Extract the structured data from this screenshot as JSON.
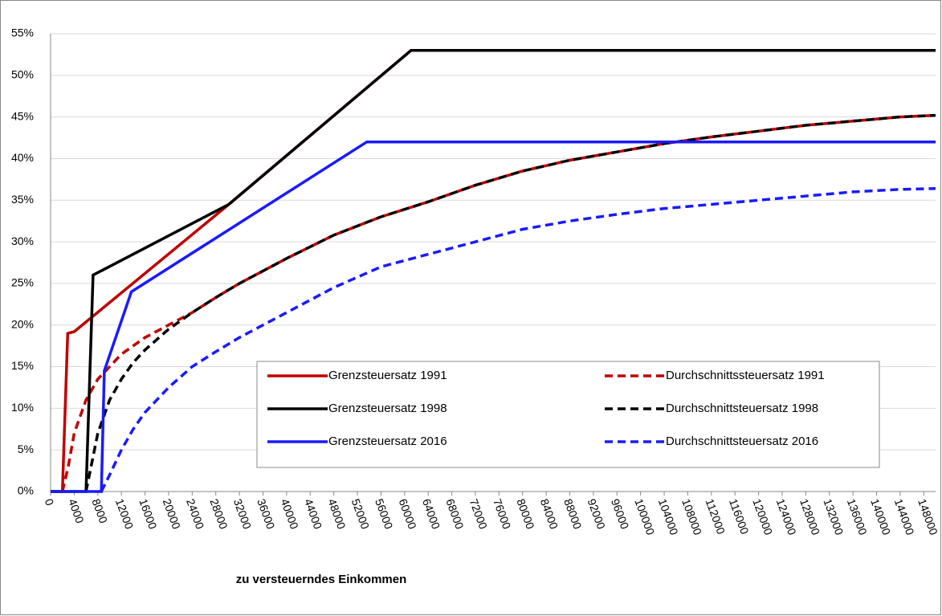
{
  "chart_data": {
    "type": "line",
    "xlabel": "zu versteuerndes Einkommen",
    "xlim": [
      0,
      150000
    ],
    "xticks": [
      0,
      4000,
      8000,
      12000,
      16000,
      20000,
      24000,
      28000,
      32000,
      36000,
      40000,
      44000,
      48000,
      52000,
      56000,
      60000,
      64000,
      68000,
      72000,
      76000,
      80000,
      84000,
      88000,
      92000,
      96000,
      100000,
      104000,
      108000,
      112000,
      116000,
      120000,
      124000,
      128000,
      132000,
      136000,
      140000,
      144000,
      148000
    ],
    "ylim": [
      0,
      55
    ],
    "yticks": [
      {
        "value": 0,
        "label": "0%"
      },
      {
        "value": 5,
        "label": "5%"
      },
      {
        "value": 10,
        "label": "10%"
      },
      {
        "value": 15,
        "label": "15%"
      },
      {
        "value": 20,
        "label": "20%"
      },
      {
        "value": 25,
        "label": "25%"
      },
      {
        "value": 30,
        "label": "30%"
      },
      {
        "value": 35,
        "label": "35%"
      },
      {
        "value": 40,
        "label": "40%"
      },
      {
        "value": 45,
        "label": "45%"
      },
      {
        "value": 50,
        "label": "50%"
      },
      {
        "value": 55,
        "label": "55%"
      }
    ],
    "grid": true,
    "series": [
      {
        "name": "Grenzsteuersatz 1991",
        "color": "#c00000",
        "dashed": false,
        "x": [
          0,
          2000,
          2900,
          4000,
          30200,
          61100,
          150000
        ],
        "values": [
          0,
          0,
          19,
          19.2,
          34.5,
          53,
          53
        ]
      },
      {
        "name": "Durchschnittssteuersatz 1991",
        "color": "#c00000",
        "dashed": true,
        "x": [
          2000,
          3000,
          4000,
          6000,
          8000,
          12000,
          16000,
          20000,
          24000,
          28000,
          32000,
          36000,
          40000,
          48000,
          56000,
          64000,
          72000,
          80000,
          88000,
          96000,
          104000,
          112000,
          120000,
          128000,
          136000,
          144000,
          150000
        ],
        "values": [
          0,
          3,
          7,
          11,
          13.5,
          16.5,
          18.5,
          20,
          21.5,
          23.3,
          25,
          26.5,
          28,
          30.8,
          33,
          34.8,
          36.8,
          38.5,
          39.8,
          40.8,
          41.8,
          42.6,
          43.3,
          44,
          44.5,
          45,
          45.2
        ]
      },
      {
        "name": "Grenzsteuersatz 1998",
        "color": "#000000",
        "dashed": false,
        "x": [
          0,
          6000,
          7200,
          30200,
          61100,
          150000
        ],
        "values": [
          0,
          0,
          26,
          34.5,
          53,
          53
        ]
      },
      {
        "name": "Durchschnittsteuersatz 1998",
        "color": "#000000",
        "dashed": true,
        "x": [
          6000,
          8000,
          10000,
          12000,
          14000,
          16000,
          20000,
          24000,
          28000,
          32000,
          36000,
          40000,
          48000,
          56000,
          64000,
          72000,
          80000,
          88000,
          96000,
          104000,
          112000,
          120000,
          128000,
          136000,
          144000,
          150000
        ],
        "values": [
          0,
          7,
          11,
          13.5,
          15.5,
          17,
          19.5,
          21.5,
          23.3,
          25,
          26.5,
          28,
          30.8,
          33,
          34.8,
          36.8,
          38.5,
          39.8,
          40.8,
          41.8,
          42.6,
          43.3,
          44,
          44.5,
          45,
          45.2
        ]
      },
      {
        "name": "Grenzsteuersatz 2016",
        "color": "#1a1aff",
        "dashed": false,
        "x": [
          0,
          8600,
          9100,
          13700,
          53600,
          150000
        ],
        "values": [
          0,
          0,
          14.5,
          24,
          42,
          42
        ]
      },
      {
        "name": "Durchschnittsteuersatz 2016",
        "color": "#1a1aff",
        "dashed": true,
        "x": [
          8600,
          10000,
          12000,
          14000,
          16000,
          20000,
          24000,
          28000,
          32000,
          36000,
          40000,
          48000,
          56000,
          64000,
          72000,
          80000,
          88000,
          96000,
          104000,
          112000,
          120000,
          128000,
          136000,
          144000,
          150000
        ],
        "values": [
          0,
          2,
          5,
          7.5,
          9.5,
          12.5,
          15,
          16.8,
          18.5,
          20,
          21.5,
          24.5,
          27,
          28.5,
          30,
          31.5,
          32.5,
          33.3,
          34,
          34.5,
          35,
          35.5,
          36,
          36.3,
          36.4
        ]
      }
    ]
  }
}
